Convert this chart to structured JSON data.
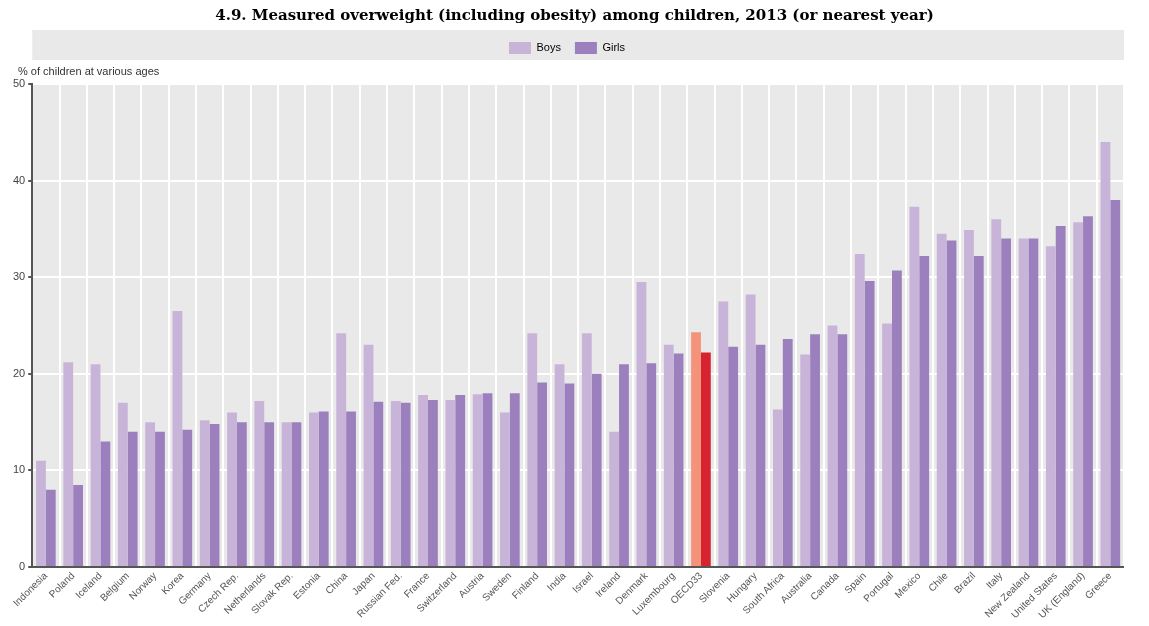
{
  "chart_data": {
    "type": "bar",
    "title": "4.9. Measured overweight (including obesity) among children, 2013 (or nearest year)",
    "ylabel": "% of children at various ages",
    "categories": [
      "Indonesia",
      "Poland",
      "Iceland",
      "Belgium",
      "Norway",
      "Korea",
      "Germany",
      "Czech Rep.",
      "Netherlands",
      "Slovak Rep.",
      "Estonia",
      "China",
      "Japan",
      "Russian Fed.",
      "France",
      "Switzerland",
      "Austria",
      "Sweden",
      "Finland",
      "India",
      "Israel",
      "Ireland",
      "Denmark",
      "Luxembourg",
      "OECD33",
      "Slovenia",
      "Hungary",
      "South Africa",
      "Australia",
      "Canada",
      "Spain",
      "Portugal",
      "Mexico",
      "Chile",
      "Brazil",
      "Italy",
      "New Zealand",
      "United States",
      "UK (England)",
      "Greece"
    ],
    "series": [
      {
        "name": "Boys",
        "color": "#c8b4d8",
        "colors": [
          "#c8b4d8",
          "#c8b4d8",
          "#c8b4d8",
          "#c8b4d8",
          "#c8b4d8",
          "#c8b4d8",
          "#c8b4d8",
          "#c8b4d8",
          "#c8b4d8",
          "#c8b4d8",
          "#c8b4d8",
          "#c8b4d8",
          "#c8b4d8",
          "#c8b4d8",
          "#c8b4d8",
          "#c8b4d8",
          "#c8b4d8",
          "#c8b4d8",
          "#c8b4d8",
          "#c8b4d8",
          "#c8b4d8",
          "#c8b4d8",
          "#c8b4d8",
          "#c8b4d8",
          "#f4937a",
          "#c8b4d8",
          "#c8b4d8",
          "#c8b4d8",
          "#c8b4d8",
          "#c8b4d8",
          "#c8b4d8",
          "#c8b4d8",
          "#c8b4d8",
          "#c8b4d8",
          "#c8b4d8",
          "#c8b4d8",
          "#c8b4d8",
          "#c8b4d8",
          "#c8b4d8",
          "#c8b4d8"
        ],
        "values": [
          11,
          21.2,
          21,
          17,
          15,
          26.5,
          15.2,
          16,
          17.2,
          15,
          16,
          24.2,
          23,
          17.2,
          17.8,
          17.3,
          17.9,
          16,
          24.2,
          21,
          24.2,
          14,
          29.5,
          23,
          24.3,
          27.5,
          28.2,
          16.3,
          22,
          25,
          32.4,
          25.2,
          37.3,
          34.5,
          34.9,
          36,
          34,
          33.2,
          35.7,
          44
        ]
      },
      {
        "name": "Girls",
        "color": "#9b80bd",
        "colors": [
          "#9b80bd",
          "#9b80bd",
          "#9b80bd",
          "#9b80bd",
          "#9b80bd",
          "#9b80bd",
          "#9b80bd",
          "#9b80bd",
          "#9b80bd",
          "#9b80bd",
          "#9b80bd",
          "#9b80bd",
          "#9b80bd",
          "#9b80bd",
          "#9b80bd",
          "#9b80bd",
          "#9b80bd",
          "#9b80bd",
          "#9b80bd",
          "#9b80bd",
          "#9b80bd",
          "#9b80bd",
          "#9b80bd",
          "#9b80bd",
          "#d7222f",
          "#9b80bd",
          "#9b80bd",
          "#9b80bd",
          "#9b80bd",
          "#9b80bd",
          "#9b80bd",
          "#9b80bd",
          "#9b80bd",
          "#9b80bd",
          "#9b80bd",
          "#9b80bd",
          "#9b80bd",
          "#9b80bd",
          "#9b80bd",
          "#9b80bd"
        ],
        "values": [
          8,
          8.5,
          13,
          14,
          14,
          14.2,
          14.8,
          15,
          15,
          15,
          16.1,
          16.1,
          17.1,
          17,
          17.3,
          17.8,
          18,
          18,
          19.1,
          19,
          20,
          21,
          21.1,
          22.1,
          22.2,
          22.8,
          23,
          23.6,
          24.1,
          24.1,
          29.6,
          30.7,
          32.2,
          33.8,
          32.2,
          34,
          34,
          35.3,
          36.3,
          38
        ]
      }
    ],
    "ylim": [
      0,
      50
    ],
    "yticks": [
      0,
      10,
      20,
      30,
      40,
      50
    ],
    "grid": true,
    "legend": "top"
  }
}
